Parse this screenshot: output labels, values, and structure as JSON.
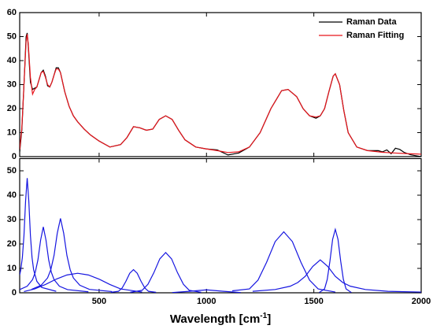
{
  "chart_data": [
    {
      "type": "line",
      "x": [
        130,
        140,
        150,
        160,
        165,
        170,
        180,
        190,
        200,
        210,
        220,
        230,
        240,
        250,
        260,
        270,
        280,
        290,
        300,
        310,
        320,
        330,
        340,
        360,
        380,
        400,
        430,
        460,
        500,
        550,
        600,
        630,
        660,
        690,
        720,
        750,
        780,
        810,
        840,
        870,
        900,
        950,
        1000,
        1050,
        1100,
        1150,
        1200,
        1250,
        1300,
        1350,
        1380,
        1420,
        1450,
        1480,
        1510,
        1530,
        1550,
        1570,
        1590,
        1600,
        1620,
        1640,
        1660,
        1700,
        1750,
        1800,
        1820,
        1840,
        1860,
        1880,
        1900,
        1920,
        1950,
        1980,
        2000
      ],
      "series": [
        {
          "name": "Raman Data",
          "color": "#000000",
          "values": [
            2,
            11,
            30,
            50,
            51.5,
            46,
            31,
            28,
            28.5,
            29,
            32,
            35,
            36,
            33.5,
            29.5,
            29,
            31,
            34,
            37,
            37,
            35,
            31,
            27,
            21,
            17,
            14.5,
            11.5,
            9,
            6.5,
            4,
            5,
            8,
            12.5,
            12,
            11,
            11.5,
            15.5,
            17,
            15.5,
            11,
            7,
            4,
            3.2,
            2.8,
            0.7,
            1.5,
            4,
            10,
            20,
            27.5,
            28,
            25,
            20,
            17,
            16,
            17,
            20,
            27,
            33.5,
            34.5,
            30,
            19,
            10,
            4,
            2.5,
            2.5,
            2,
            2.8,
            1.2,
            3.5,
            3,
            1.8,
            0.8,
            0.3,
            0
          ]
        },
        {
          "name": "Raman Fitting",
          "color": "#e8141b",
          "values": [
            3,
            12,
            30,
            48,
            51,
            47,
            33,
            26,
            28,
            29,
            32,
            35,
            35.5,
            33,
            30,
            29,
            31,
            34,
            36.5,
            36.5,
            35,
            31,
            27,
            21,
            17,
            14.5,
            11.5,
            9,
            6.5,
            4,
            5,
            8,
            12.5,
            12,
            11,
            11.5,
            15.5,
            17,
            15.5,
            11,
            7,
            4,
            3.2,
            2.5,
            1.7,
            2,
            4,
            10,
            20,
            27.5,
            28,
            25,
            20,
            17,
            16.5,
            17,
            20,
            27,
            33.5,
            34.5,
            30,
            19,
            10,
            4,
            2.5,
            2,
            1.8,
            1.7,
            1.6,
            1.5,
            1.4,
            1.3,
            1.2,
            1.1,
            1
          ]
        }
      ],
      "xlim": [
        130,
        2000
      ],
      "xticks": [
        500,
        1000,
        1500,
        2000
      ],
      "show_xtick_labels": false,
      "ylim": [
        0,
        60
      ],
      "yticks": [
        0,
        10,
        20,
        30,
        40,
        50,
        60
      ],
      "legend": "upper right"
    },
    {
      "type": "line",
      "series": [
        {
          "color": "#1515e0",
          "x": [
            130,
            135,
            142.5,
            150,
            157.5,
            165,
            172.5,
            180,
            187.5,
            195,
            210,
            232.5,
            300
          ],
          "values": [
            7.3,
            9.4,
            14.5,
            23.5,
            37.6,
            47,
            37.6,
            23.5,
            14.5,
            9.4,
            4.7,
            2.2,
            0.6
          ]
        },
        {
          "color": "#1515e0",
          "x": [
            130,
            165,
            190,
            202.5,
            215,
            227.5,
            240,
            252.5,
            265,
            277.5,
            290,
            315,
            352.5,
            450
          ],
          "values": [
            1.3,
            2.7,
            5.4,
            8.4,
            13.5,
            21.6,
            27,
            21.6,
            13.5,
            8.4,
            5.4,
            2.7,
            1.3,
            0.4
          ]
        },
        {
          "color": "#1515e0",
          "x": [
            185,
            230,
            260,
            275,
            290,
            305,
            320,
            335,
            350,
            365,
            380,
            410,
            455,
            560
          ],
          "values": [
            1.4,
            3.1,
            6.1,
            9.5,
            15.3,
            24.4,
            30.5,
            24.4,
            15.3,
            9.5,
            6.1,
            3.1,
            1.4,
            0.5
          ]
        },
        {
          "color": "#1515e0",
          "x": [
            150,
            200,
            250,
            300,
            350,
            400,
            450,
            500,
            550,
            600,
            700
          ],
          "values": [
            0.5,
            1.6,
            3.4,
            5.6,
            7.3,
            8,
            7.3,
            5.6,
            3.4,
            1.6,
            0.3
          ]
        },
        {
          "color": "#1515e0",
          "x": [
            555,
            590,
            607.5,
            625,
            642.5,
            660,
            677.5,
            695,
            712.5,
            730,
            765
          ],
          "values": [
            0.2,
            0.6,
            2,
            4.75,
            8,
            9.5,
            8,
            4.75,
            2,
            0.6,
            0.2
          ]
        },
        {
          "color": "#1515e0",
          "x": [
            645,
            700,
            727.5,
            755,
            782.5,
            810,
            837.5,
            865,
            892.5,
            920,
            975
          ],
          "values": [
            0.2,
            1,
            3.5,
            8.25,
            13.9,
            16.5,
            13.9,
            8.25,
            3.5,
            1,
            0.2
          ]
        },
        {
          "color": "#1515e0",
          "x": [
            840,
            920,
            1000,
            1080,
            1160
          ],
          "values": [
            0.1,
            0.6,
            1.2,
            0.6,
            0.1
          ]
        },
        {
          "color": "#1515e0",
          "x": [
            1120,
            1200,
            1240,
            1280,
            1320,
            1360,
            1400,
            1440,
            1480,
            1520,
            1600
          ],
          "values": [
            0.8,
            1.6,
            5.2,
            12.5,
            21,
            25,
            21,
            12.5,
            5.2,
            1.6,
            0.3
          ]
        },
        {
          "color": "#1515e0",
          "x": [
            1215,
            1320,
            1390,
            1425,
            1460,
            1495,
            1530,
            1565,
            1600,
            1635,
            1670,
            1740,
            1845,
            2000
          ],
          "values": [
            0.6,
            1.35,
            2.7,
            4.2,
            6.75,
            10.8,
            13.5,
            10.8,
            6.75,
            4.2,
            2.7,
            1.35,
            0.6,
            0.3
          ]
        },
        {
          "color": "#1515e0",
          "x": [
            1525,
            1550,
            1562.5,
            1575,
            1587.5,
            1600,
            1612.5,
            1625,
            1637.5,
            1650,
            1675
          ],
          "values": [
            0.1,
            1.6,
            5.5,
            13,
            21.9,
            26,
            21.9,
            13,
            5.5,
            1.6,
            0.1
          ]
        }
      ],
      "xlim": [
        130,
        2000
      ],
      "xticks": [
        500,
        1000,
        1500,
        2000
      ],
      "ylim": [
        0,
        55
      ],
      "yticks": [
        0,
        10,
        20,
        30,
        40,
        50
      ],
      "xlabel": {
        "text": "Wavelength [cm",
        "sup": "-1",
        "close": "]"
      }
    }
  ]
}
